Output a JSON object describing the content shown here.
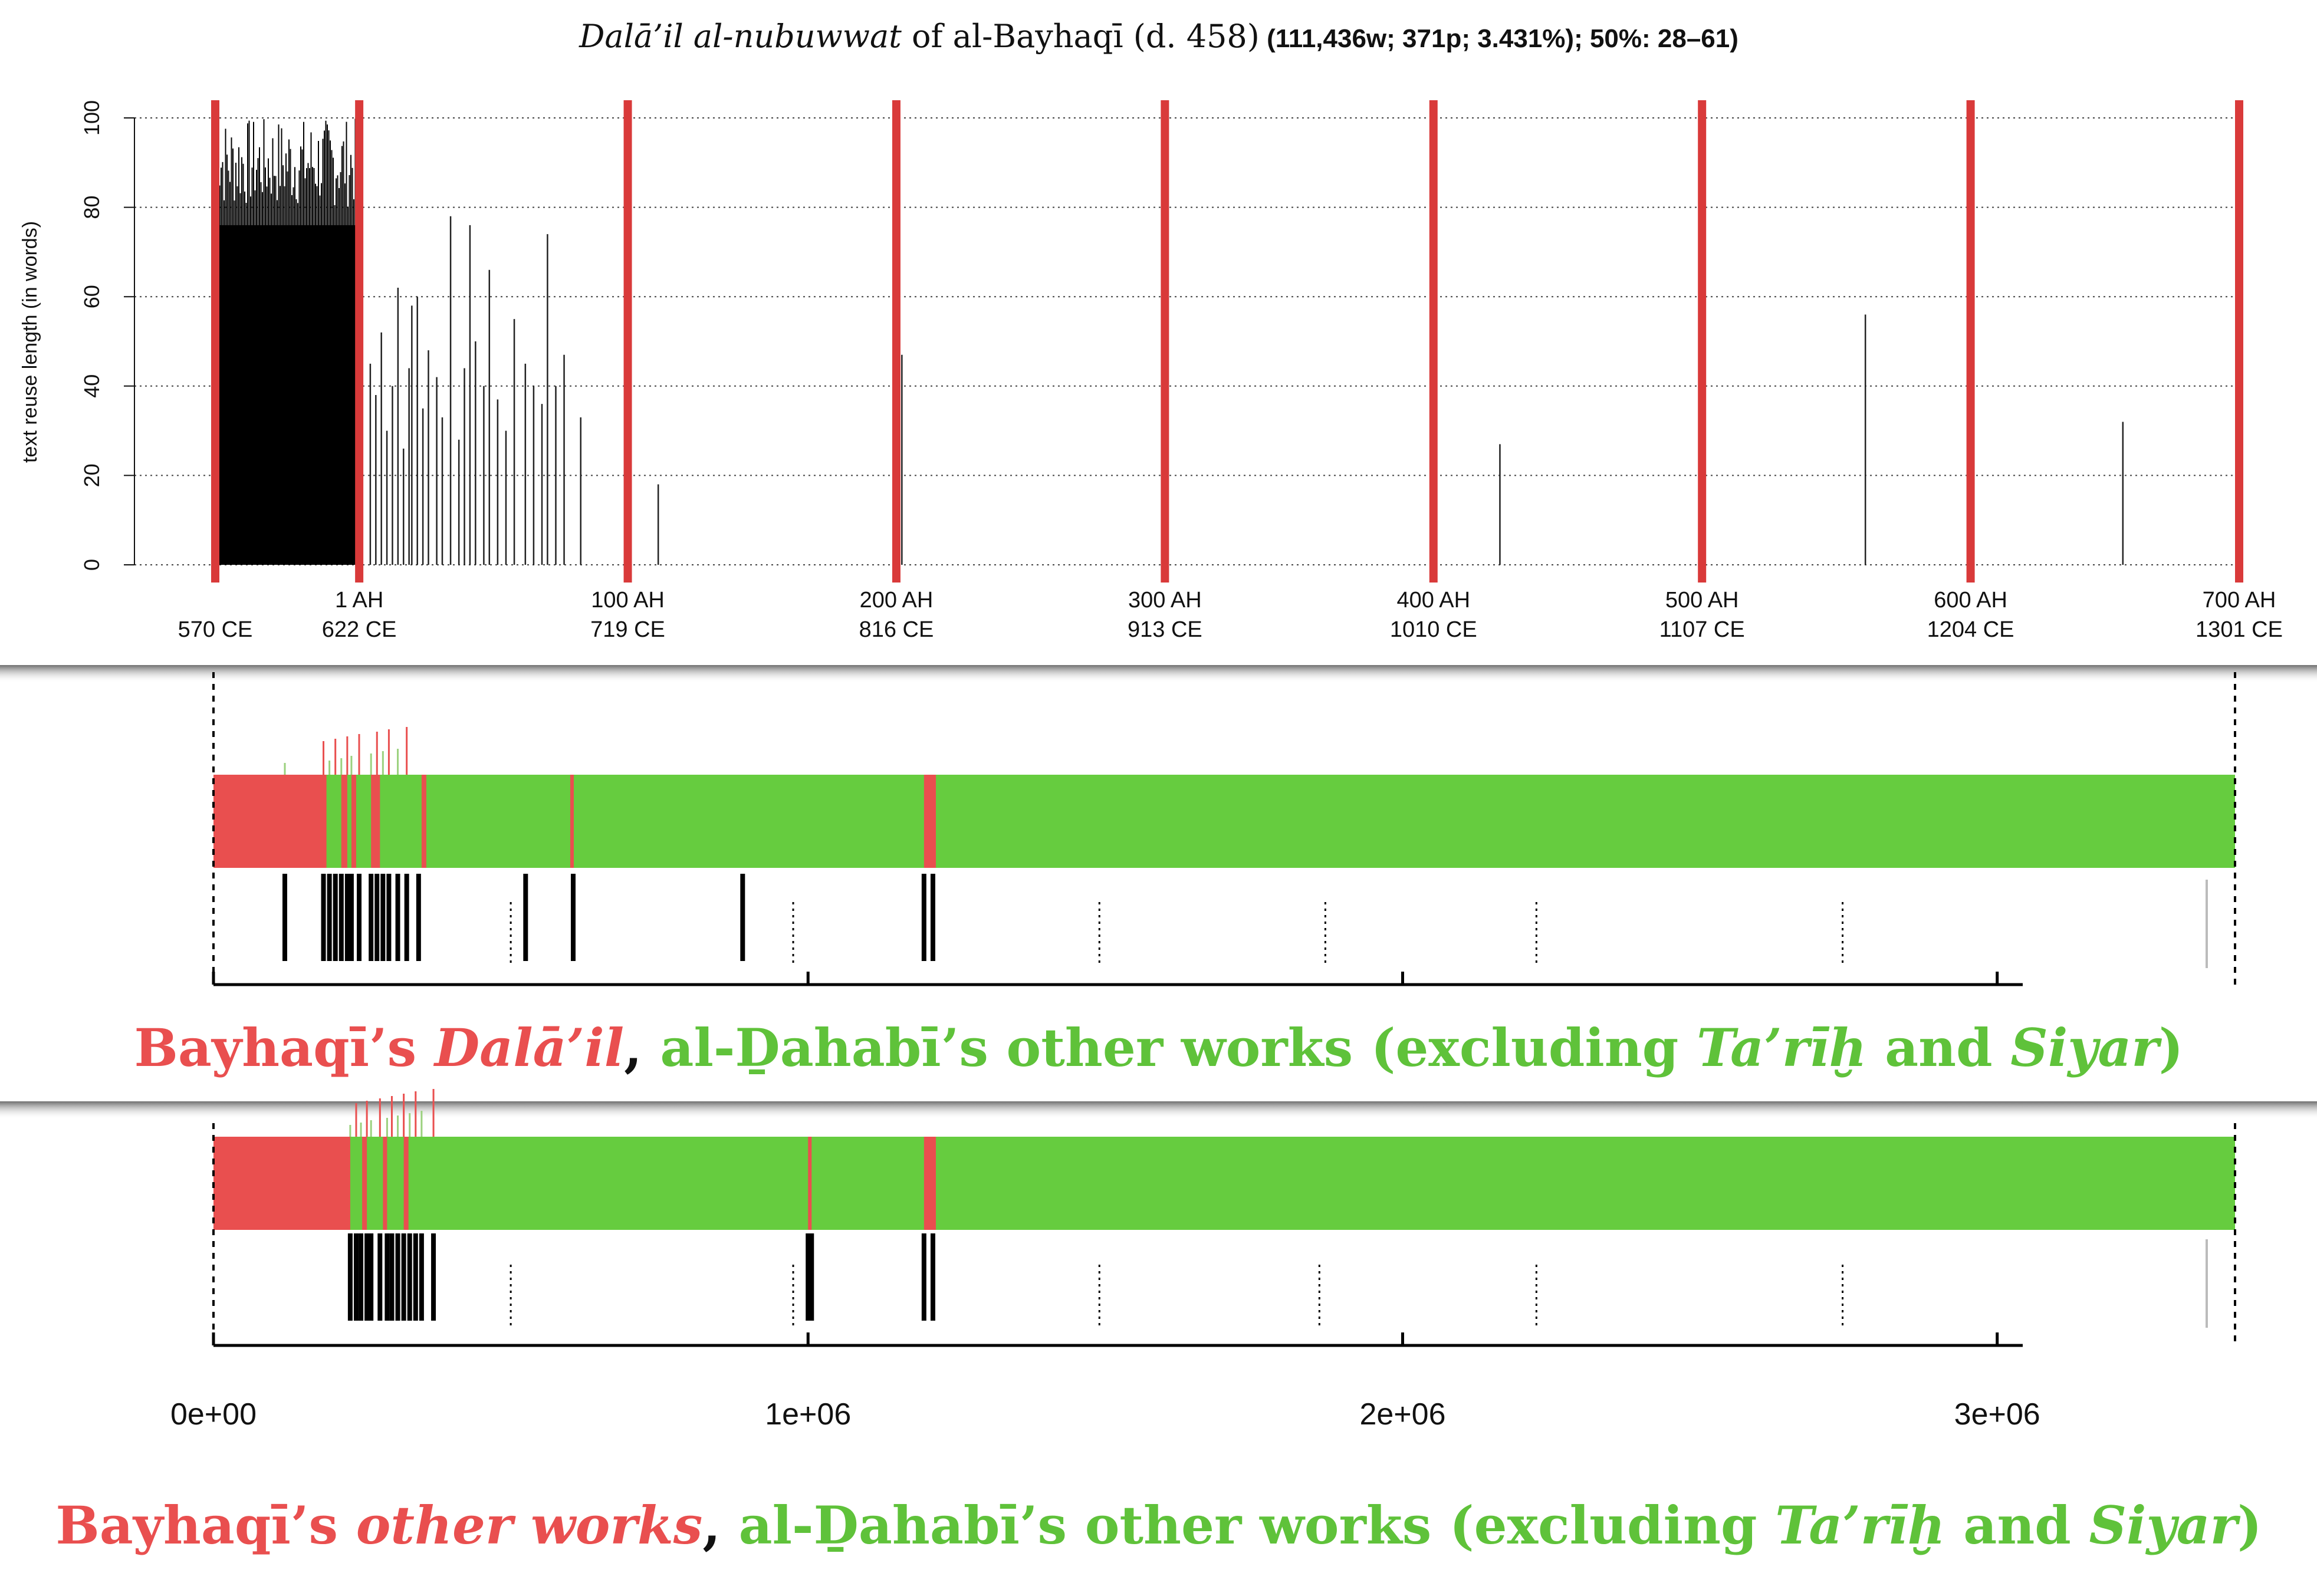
{
  "chart_data": [
    {
      "type": "bar",
      "title_part1": "Dalā’il al-nubuwwat",
      "title_part2": " of al-Bayhaqī (d. 458)",
      "subtitle": " (111,436w; 371p; 3.431%); 50%: 28–61)",
      "xlabel": "",
      "ylabel": "text reuse length (in words)",
      "ylim": [
        0,
        100
      ],
      "yticks": [
        0,
        20,
        40,
        60,
        80,
        100
      ],
      "grid": true,
      "xlim_ce": [
        570,
        1301
      ],
      "markers": [
        {
          "ah": "",
          "ce": "570 CE",
          "x": 570
        },
        {
          "ah": "1 AH",
          "ce": "622 CE",
          "x": 622
        },
        {
          "ah": "100 AH",
          "ce": "719 CE",
          "x": 719
        },
        {
          "ah": "200 AH",
          "ce": "816 CE",
          "x": 816
        },
        {
          "ah": "300 AH",
          "ce": "913 CE",
          "x": 913
        },
        {
          "ah": "400 AH",
          "ce": "1010 CE",
          "x": 1010
        },
        {
          "ah": "500 AH",
          "ce": "1107 CE",
          "x": 1107
        },
        {
          "ah": "600 AH",
          "ce": "1204 CE",
          "x": 1204
        },
        {
          "ah": "700 AH",
          "ce": "1301 CE",
          "x": 1301
        }
      ],
      "sparse_bars": [
        {
          "x": 623,
          "y": 88
        },
        {
          "x": 626,
          "y": 45
        },
        {
          "x": 628,
          "y": 38
        },
        {
          "x": 630,
          "y": 52
        },
        {
          "x": 632,
          "y": 30
        },
        {
          "x": 634,
          "y": 40
        },
        {
          "x": 636,
          "y": 62
        },
        {
          "x": 638,
          "y": 26
        },
        {
          "x": 640,
          "y": 44
        },
        {
          "x": 641,
          "y": 58
        },
        {
          "x": 643,
          "y": 60
        },
        {
          "x": 645,
          "y": 35
        },
        {
          "x": 647,
          "y": 48
        },
        {
          "x": 650,
          "y": 42
        },
        {
          "x": 652,
          "y": 33
        },
        {
          "x": 655,
          "y": 78
        },
        {
          "x": 658,
          "y": 28
        },
        {
          "x": 660,
          "y": 44
        },
        {
          "x": 662,
          "y": 76
        },
        {
          "x": 664,
          "y": 50
        },
        {
          "x": 667,
          "y": 40
        },
        {
          "x": 669,
          "y": 66
        },
        {
          "x": 672,
          "y": 37
        },
        {
          "x": 675,
          "y": 30
        },
        {
          "x": 678,
          "y": 55
        },
        {
          "x": 682,
          "y": 45
        },
        {
          "x": 685,
          "y": 40
        },
        {
          "x": 688,
          "y": 36
        },
        {
          "x": 690,
          "y": 74
        },
        {
          "x": 693,
          "y": 40
        },
        {
          "x": 696,
          "y": 47
        },
        {
          "x": 702,
          "y": 33
        },
        {
          "x": 718,
          "y": 17
        },
        {
          "x": 730,
          "y": 18
        },
        {
          "x": 818,
          "y": 47
        },
        {
          "x": 1034,
          "y": 27
        },
        {
          "x": 1166,
          "y": 56
        },
        {
          "x": 1259,
          "y": 32
        }
      ],
      "dense_region_ce": [
        570,
        622
      ],
      "dense_region_max": 100
    },
    {
      "type": "bar",
      "caption_red1": "Bayhaqī’s ",
      "caption_red_italic": "Dalā’il",
      "caption_comma": ", ",
      "caption_green1": "al-Ḏahabī’s other works (excluding ",
      "caption_green_it1": "Ta’rīḫ",
      "caption_green2": " and ",
      "caption_green_it2": "Siyar",
      "caption_green3": ")",
      "colors": {
        "source": "#e94f4f",
        "target": "#66cc3f"
      },
      "xlim": [
        0,
        3400000
      ],
      "red_segments": [
        [
          0,
          190000
        ],
        [
          215000,
          225000
        ],
        [
          232000,
          240000
        ],
        [
          265000,
          280000
        ],
        [
          350000,
          358000
        ],
        [
          600000,
          606000
        ],
        [
          1195000,
          1215000
        ]
      ],
      "match_ticks": [
        120000,
        185000,
        195000,
        205000,
        215000,
        225000,
        232000,
        245000,
        265000,
        275000,
        285000,
        295000,
        310000,
        325000,
        345000,
        525000,
        605000,
        890000,
        1195000,
        1210000
      ],
      "dotted_ticks": [
        500000,
        975000,
        1490000,
        1870000,
        2225000,
        2740000
      ]
    },
    {
      "type": "bar",
      "caption_red1": "Bayhaqī’s ",
      "caption_red_italic": "other works",
      "caption_comma": ", ",
      "caption_green1": "al-Ḏahabī’s other works (excluding ",
      "caption_green_it1": "Ta’rīḫ",
      "caption_green2": " and ",
      "caption_green_it2": "Siyar",
      "caption_green3": ")",
      "colors": {
        "source": "#e94f4f",
        "target": "#66cc3f"
      },
      "xlim": [
        0,
        3400000
      ],
      "xticks": [
        0,
        1000000,
        2000000,
        3000000
      ],
      "xtick_labels": [
        "0e+00",
        "1e+06",
        "2e+06",
        "3e+06"
      ],
      "red_segments": [
        [
          0,
          230000
        ],
        [
          250000,
          258000
        ],
        [
          285000,
          292000
        ],
        [
          320000,
          328000
        ],
        [
          1000000,
          1006000
        ],
        [
          1195000,
          1215000
        ]
      ],
      "match_ticks": [
        230000,
        240000,
        248000,
        258000,
        265000,
        280000,
        292000,
        300000,
        310000,
        320000,
        330000,
        340000,
        350000,
        370000,
        1000000,
        1006000,
        1195000,
        1210000
      ],
      "dotted_ticks": [
        500000,
        975000,
        1490000,
        1860000,
        2225000,
        2740000
      ]
    }
  ]
}
